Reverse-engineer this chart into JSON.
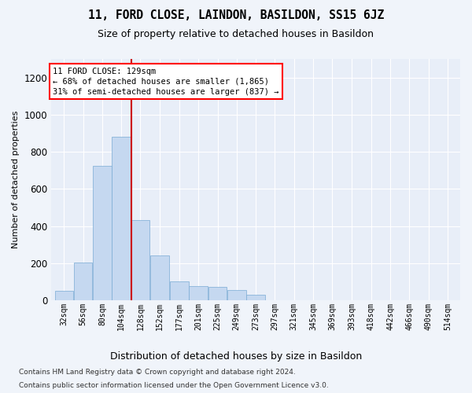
{
  "title": "11, FORD CLOSE, LAINDON, BASILDON, SS15 6JZ",
  "subtitle": "Size of property relative to detached houses in Basildon",
  "xlabel": "Distribution of detached houses by size in Basildon",
  "ylabel": "Number of detached properties",
  "footnote1": "Contains HM Land Registry data © Crown copyright and database right 2024.",
  "footnote2": "Contains public sector information licensed under the Open Government Licence v3.0.",
  "annotation_line1": "11 FORD CLOSE: 129sqm",
  "annotation_line2": "← 68% of detached houses are smaller (1,865)",
  "annotation_line3": "31% of semi-detached houses are larger (837) →",
  "bar_color": "#c5d8f0",
  "bar_edge_color": "#7aabd4",
  "property_line_color": "#cc0000",
  "property_value": 129,
  "categories": [
    "32sqm",
    "56sqm",
    "80sqm",
    "104sqm",
    "128sqm",
    "152sqm",
    "177sqm",
    "201sqm",
    "225sqm",
    "249sqm",
    "273sqm",
    "297sqm",
    "321sqm",
    "345sqm",
    "369sqm",
    "393sqm",
    "418sqm",
    "442sqm",
    "466sqm",
    "490sqm",
    "514sqm"
  ],
  "bin_edges": [
    32,
    56,
    80,
    104,
    128,
    152,
    177,
    201,
    225,
    249,
    273,
    297,
    321,
    345,
    369,
    393,
    418,
    442,
    466,
    490,
    514,
    538
  ],
  "values": [
    50,
    205,
    725,
    880,
    430,
    240,
    100,
    75,
    70,
    55,
    30,
    0,
    0,
    0,
    0,
    0,
    0,
    0,
    0,
    0,
    0
  ],
  "ylim": [
    0,
    1300
  ],
  "yticks": [
    0,
    200,
    400,
    600,
    800,
    1000,
    1200
  ],
  "background_color": "#f0f4fa",
  "plot_bg_color": "#e8eef8",
  "title_fontsize": 10.5,
  "subtitle_fontsize": 9,
  "ylabel_fontsize": 8,
  "ytick_fontsize": 8.5,
  "xtick_fontsize": 7,
  "footnote_fontsize": 6.5,
  "xlabel_fontsize": 9
}
